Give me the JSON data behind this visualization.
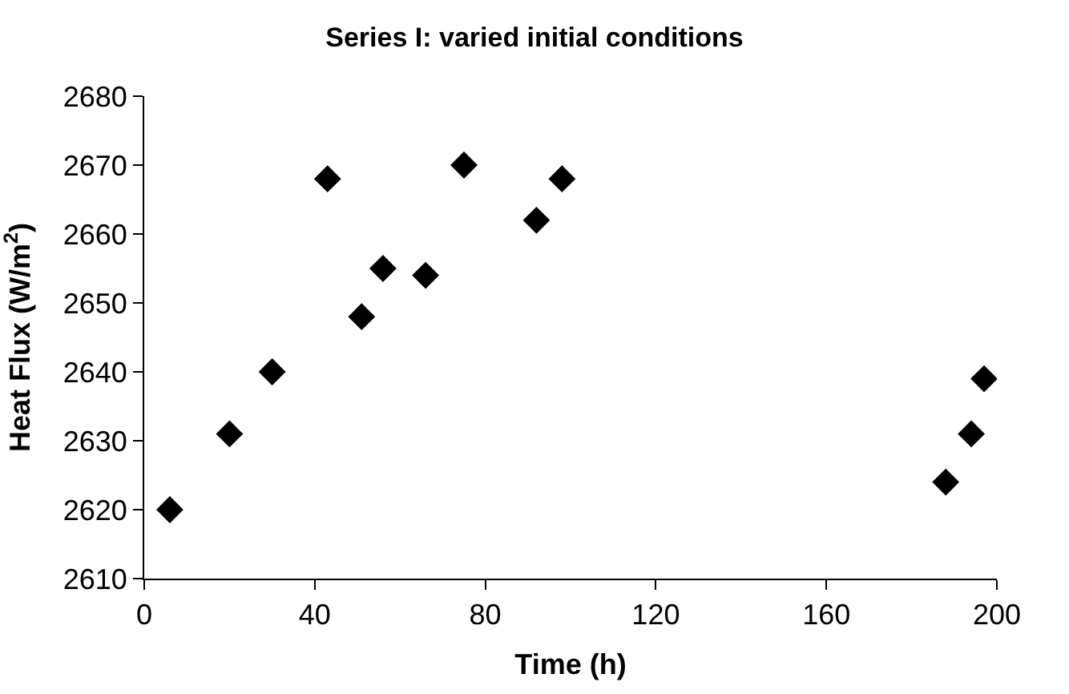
{
  "chart_data": {
    "type": "scatter",
    "title": "Series I: varied initial conditions",
    "xlabel": "Time (h)",
    "ylabel": "Heat Flux (W/m$^{2}$)",
    "x": [
      6,
      20,
      30,
      43,
      51,
      56,
      66,
      75,
      92,
      98,
      188,
      194,
      197
    ],
    "series": [
      {
        "color": "#000000",
        "values": [
          2620,
          2631,
          2640,
          2668,
          2648,
          2655,
          2654,
          2670,
          2662,
          2668,
          2624,
          2631,
          2639
        ]
      }
    ],
    "xlim": [
      0,
      200
    ],
    "xticks": [
      0,
      40,
      80,
      120,
      160,
      200
    ],
    "ylim": [
      2610,
      2680
    ],
    "yticks": [
      2610,
      2620,
      2630,
      2640,
      2650,
      2660,
      2670,
      2680
    ],
    "marker": "diamond"
  }
}
